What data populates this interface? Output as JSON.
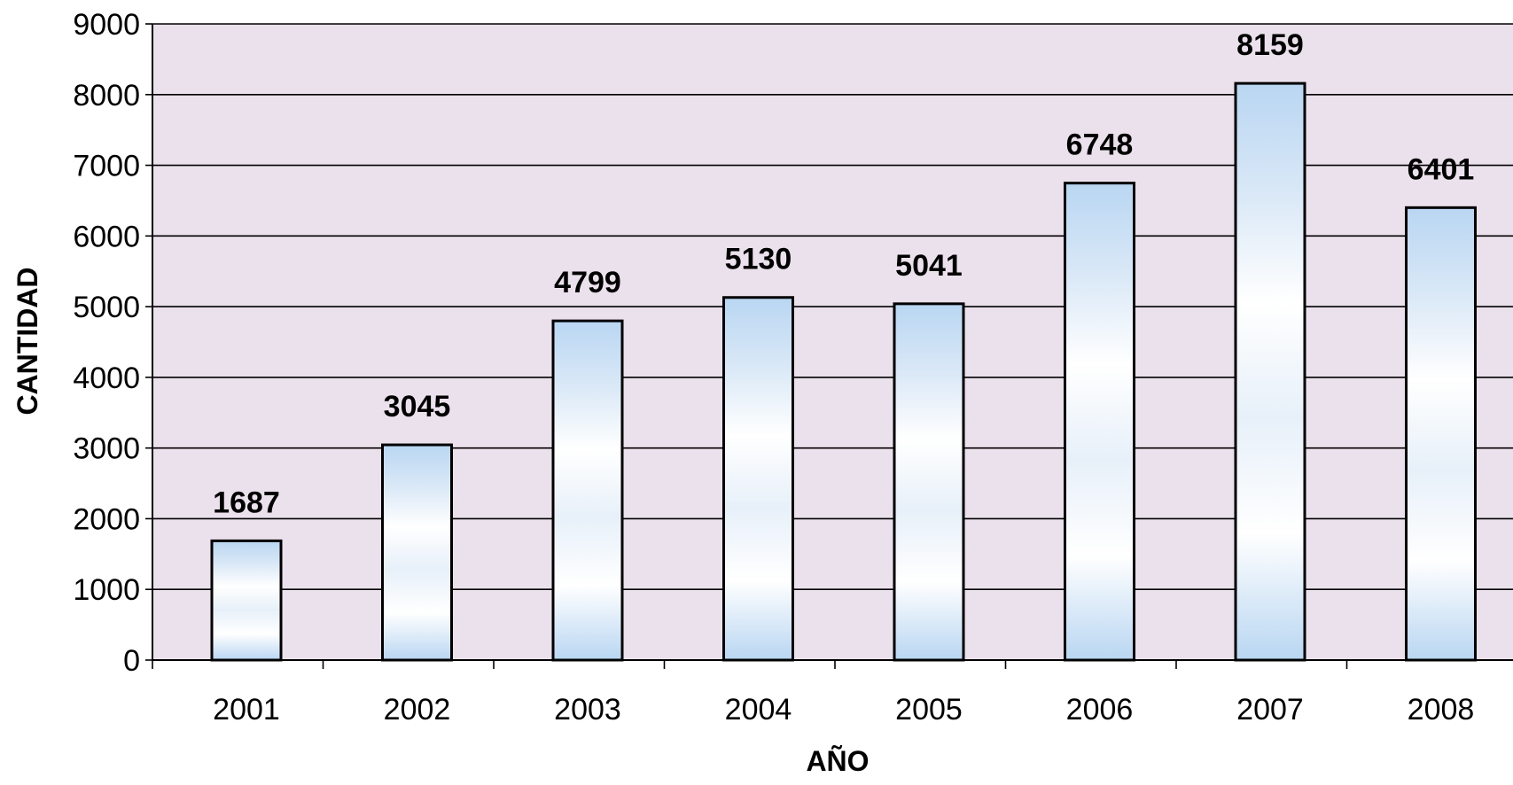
{
  "chart_data": {
    "type": "bar",
    "categories": [
      "2001",
      "2002",
      "2003",
      "2004",
      "2005",
      "2006",
      "2007",
      "2008"
    ],
    "values": [
      1687,
      3045,
      4799,
      5130,
      5041,
      6748,
      8159,
      6401
    ],
    "data_labels": [
      "1687",
      "3045",
      "4799",
      "5130",
      "5041",
      "6748",
      "8159",
      "6401"
    ],
    "xlabel": "AÑO",
    "ylabel": "CANTIDAD",
    "ylim": [
      0,
      9000
    ],
    "yticks": [
      0,
      1000,
      2000,
      3000,
      4000,
      5000,
      6000,
      7000,
      8000,
      9000
    ],
    "ytick_labels": [
      "0",
      "1000",
      "2000",
      "3000",
      "4000",
      "5000",
      "6000",
      "7000",
      "8000",
      "9000"
    ],
    "grid": true,
    "legend": "none",
    "colors": {
      "plot_background": "#ebe1ec",
      "gridline": "#000000",
      "bar_edge": "#000000",
      "bar_fill_light": "#ffffff",
      "bar_fill_blue": "#b9d6f2"
    }
  }
}
